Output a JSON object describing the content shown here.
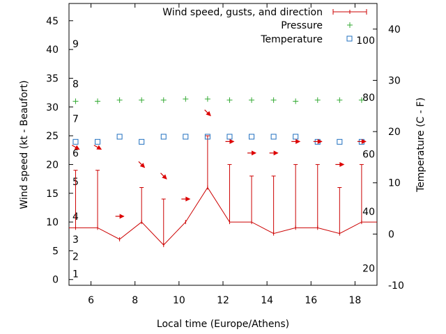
{
  "chart_data": {
    "type": "line",
    "title": "",
    "xlabel": "Local time (Europe/Athens)",
    "ylabel": "Wind speed (kt - Beaufort)",
    "y2label": "Temperature (C - F)",
    "xlim": [
      5,
      19
    ],
    "ylim": [
      -1,
      48
    ],
    "y2lim": [
      -10,
      45
    ],
    "x_ticks": [
      6,
      8,
      10,
      12,
      14,
      16,
      18
    ],
    "y_ticks": [
      0,
      5,
      10,
      15,
      20,
      25,
      30,
      35,
      40,
      45
    ],
    "y2_ticks": [
      -10,
      0,
      10,
      20,
      30,
      40
    ],
    "beaufort_labels": [
      {
        "label": "1",
        "kt": 1
      },
      {
        "label": "2",
        "kt": 4
      },
      {
        "label": "3",
        "kt": 7
      },
      {
        "label": "4",
        "kt": 11
      },
      {
        "label": "5",
        "kt": 17
      },
      {
        "label": "6",
        "kt": 22
      },
      {
        "label": "7",
        "kt": 28
      },
      {
        "label": "8",
        "kt": 34
      },
      {
        "label": "9",
        "kt": 41
      }
    ],
    "fahrenheit_labels": [
      {
        "label": "20",
        "c": -6.7
      },
      {
        "label": "40",
        "c": 4.4
      },
      {
        "label": "60",
        "c": 15.6
      },
      {
        "label": "80",
        "c": 26.7
      },
      {
        "label": "100",
        "c": 37.8
      }
    ],
    "legend": [
      "Wind speed, gusts, and direction",
      "Pressure",
      "Temperature"
    ],
    "legend_position": "top-right",
    "hours": [
      5.3,
      6.3,
      7.3,
      8.3,
      9.3,
      10.3,
      11.3,
      12.3,
      13.3,
      14.3,
      15.3,
      16.3,
      17.3,
      18.3
    ],
    "series": [
      {
        "name": "Wind speed",
        "x": [
          5,
          5.3,
          6.3,
          7.3,
          8.3,
          9.3,
          10.3,
          11.3,
          12.3,
          13.3,
          14.3,
          15.3,
          16.3,
          17.3,
          18.3,
          19
        ],
        "values": [
          9,
          9,
          9,
          7,
          10,
          6,
          10,
          16,
          10,
          10,
          8,
          9,
          9,
          8,
          10,
          10
        ]
      },
      {
        "name": "Gusts",
        "values": [
          19,
          19,
          null,
          16,
          14,
          null,
          25,
          20,
          18,
          18,
          20,
          20,
          16,
          20
        ]
      },
      {
        "name": "Direction",
        "directions_deg": [
          300,
          300,
          270,
          315,
          315,
          270,
          315,
          270,
          270,
          270,
          270,
          270,
          270,
          270
        ],
        "arrow_y_kt": [
          23,
          23,
          11,
          20,
          18,
          14,
          29,
          24,
          22,
          22,
          24,
          24,
          20,
          24
        ]
      },
      {
        "name": "Pressure",
        "y_kt": [
          31,
          31,
          31.2,
          31.2,
          31.2,
          31.4,
          31.4,
          31.2,
          31.2,
          31.2,
          31,
          31.2,
          31.2,
          31.2
        ]
      },
      {
        "name": "Temperature",
        "values_c": [
          18,
          18,
          19,
          18,
          19,
          19,
          19,
          19,
          19,
          19,
          19,
          18,
          18,
          18
        ]
      }
    ]
  }
}
